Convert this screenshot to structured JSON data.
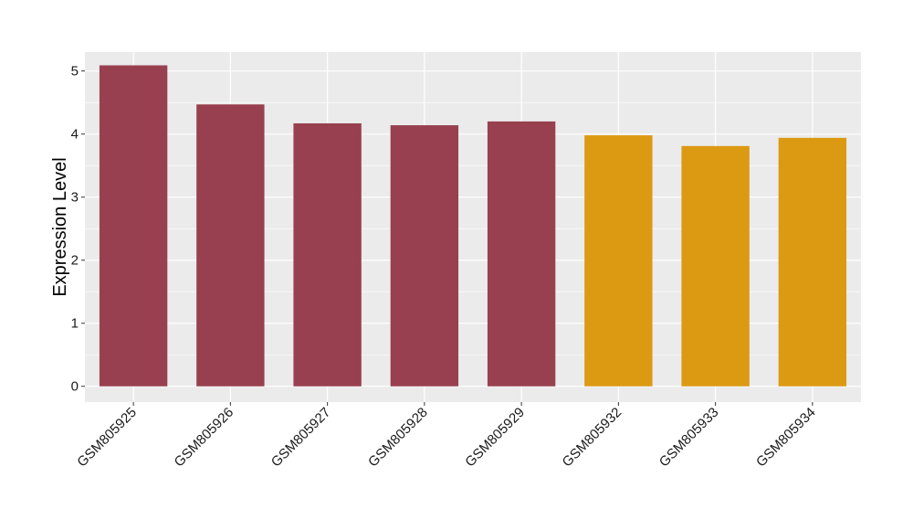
{
  "chart_data": {
    "type": "bar",
    "title": "",
    "xlabel": "",
    "ylabel": "Expression Level",
    "ylim": [
      -0.25,
      5.3
    ],
    "yticks": [
      0,
      1,
      2,
      3,
      4,
      5
    ],
    "grid": true,
    "categories": [
      "GSM805925",
      "GSM805926",
      "GSM805927",
      "GSM805928",
      "GSM805929",
      "GSM805932",
      "GSM805933",
      "GSM805934"
    ],
    "values": [
      5.09,
      4.47,
      4.17,
      4.14,
      4.2,
      3.98,
      3.81,
      3.94
    ],
    "groups": [
      0,
      0,
      0,
      0,
      0,
      1,
      1,
      1
    ],
    "group_colors": [
      "#98404F",
      "#DC9912"
    ],
    "panel_background": "#EBEBEB",
    "grid_color": "#FFFFFF"
  }
}
